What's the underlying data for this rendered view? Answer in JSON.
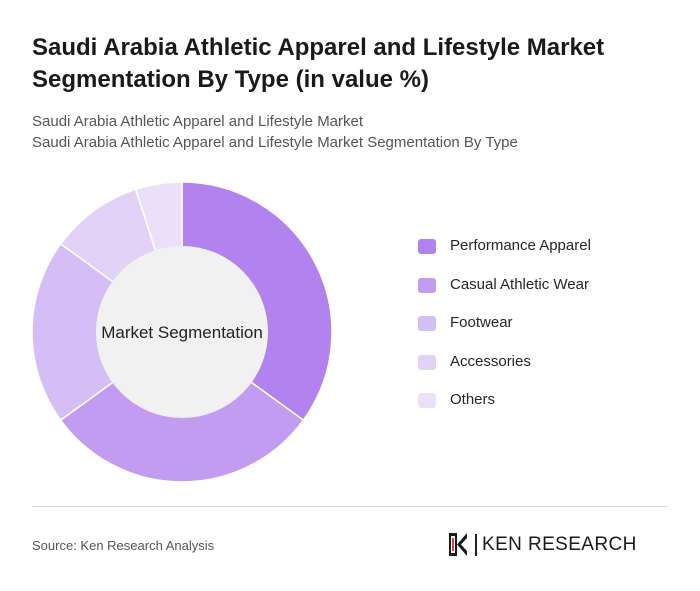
{
  "header": {
    "title": "Saudi Arabia Athletic Apparel and Lifestyle Market Segmentation By Type (in value %)",
    "subtitle_line1": "Saudi Arabia Athletic Apparel and Lifestyle Market",
    "subtitle_line2": "Saudi Arabia Athletic Apparel and Lifestyle Market Segmentation By Type"
  },
  "chart_data": {
    "type": "pie",
    "variant": "donut",
    "center_label": "Market Segmentation",
    "categories": [
      "Performance Apparel",
      "Casual Athletic Wear",
      "Footwear",
      "Accessories",
      "Others"
    ],
    "values": [
      35,
      30,
      20,
      10,
      5
    ],
    "colors": [
      "#b282ee",
      "#c29cf0",
      "#d5bdf6",
      "#e2d2f8",
      "#ebe0fa"
    ],
    "legend_position": "right",
    "start_angle": "top",
    "direction": "clockwise"
  },
  "footer": {
    "source": "Source: Ken Research Analysis",
    "brand_name": "KEN RESEARCH"
  },
  "icons": {
    "brand_logo": "ken-research-logo-icon"
  }
}
